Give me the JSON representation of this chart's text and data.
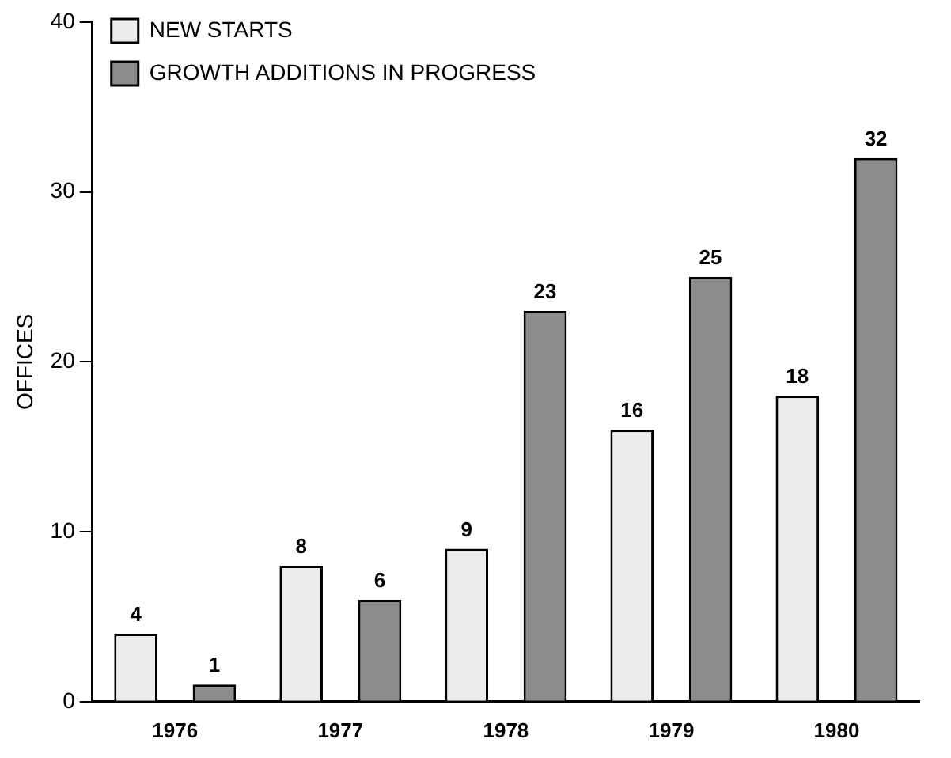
{
  "chart_data": {
    "type": "bar",
    "ylabel": "OFFICES",
    "categories": [
      "1976",
      "1977",
      "1978",
      "1979",
      "1980"
    ],
    "series": [
      {
        "name": "NEW STARTS",
        "color": "#ececec",
        "values": [
          4,
          8,
          9,
          16,
          18
        ]
      },
      {
        "name": "GROWTH ADDITIONS IN PROGRESS",
        "color": "#8c8c8c",
        "values": [
          1,
          6,
          23,
          25,
          32
        ]
      }
    ],
    "ylim": [
      0,
      40
    ],
    "yticks": [
      0,
      10,
      20,
      30,
      40
    ],
    "grid": false,
    "legend": "top left",
    "data_labels": true
  }
}
